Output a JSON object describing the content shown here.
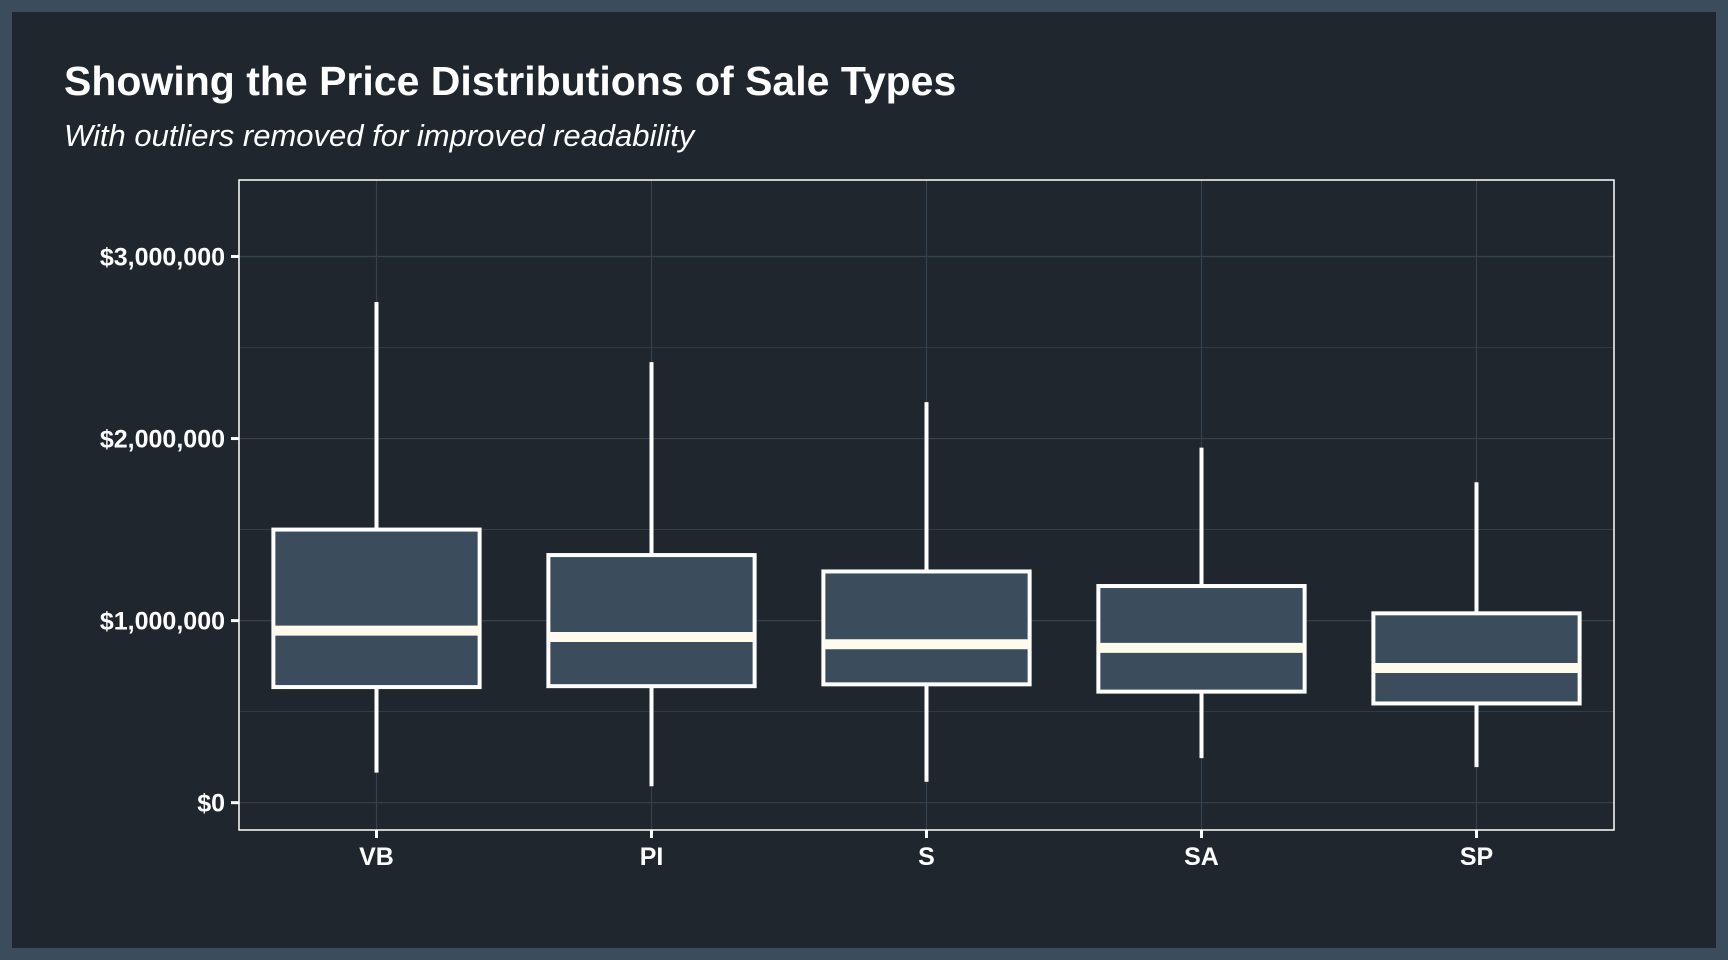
{
  "chart_data": {
    "type": "box",
    "title": "Showing the Price Distributions of Sale Types",
    "subtitle": "With outliers removed for improved readability",
    "xlabel": "",
    "ylabel": "",
    "ylim": [
      -150000,
      3420000
    ],
    "yticks": [
      0,
      1000000,
      2000000,
      3000000
    ],
    "ytick_labels": [
      "$0",
      "$1,000,000",
      "$2,000,000",
      "$3,000,000"
    ],
    "grid": true,
    "categories": [
      "VB",
      "PI",
      "S",
      "SA",
      "SP"
    ],
    "boxes": [
      {
        "category": "VB",
        "min": 165000,
        "q1": 635000,
        "median": 945000,
        "q3": 1500000,
        "max": 2750000
      },
      {
        "category": "PI",
        "min": 90000,
        "q1": 640000,
        "median": 910000,
        "q3": 1360000,
        "max": 2420000
      },
      {
        "category": "S",
        "min": 115000,
        "q1": 650000,
        "median": 870000,
        "q3": 1270000,
        "max": 2200000
      },
      {
        "category": "SA",
        "min": 245000,
        "q1": 610000,
        "median": 850000,
        "q3": 1190000,
        "max": 1950000
      },
      {
        "category": "SP",
        "min": 195000,
        "q1": 545000,
        "median": 740000,
        "q3": 1040000,
        "max": 1760000
      }
    ],
    "colors": {
      "background": "#1f262e",
      "border": "#3b4d5c",
      "box_fill": "#3b4d5c",
      "box_stroke": "#ffffff",
      "median": "#fffaeb",
      "grid": "#34434f",
      "text": "#ffffff"
    }
  }
}
